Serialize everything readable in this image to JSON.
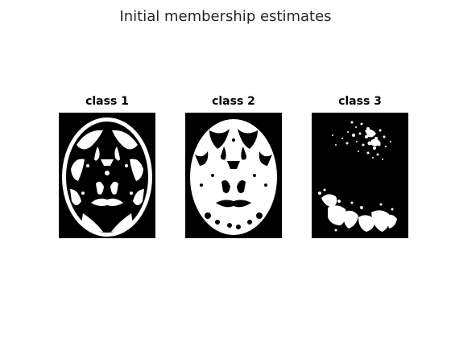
{
  "figure": {
    "title": "Initial membership estimates"
  },
  "panels": [
    {
      "title": "class 1"
    },
    {
      "title": "class 2"
    },
    {
      "title": "class 3"
    }
  ]
}
